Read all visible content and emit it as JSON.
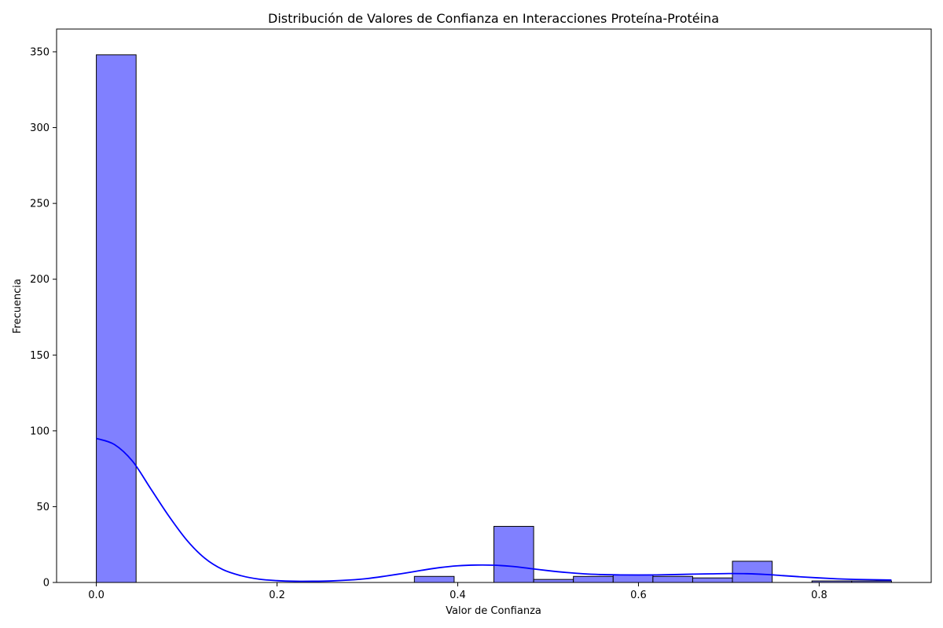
{
  "chart_data": {
    "type": "bar",
    "title": "Distribución de Valores de Confianza en Interacciones Proteína-Protéina",
    "xlabel": "Valor de Confianza",
    "ylabel": "Frecuencia",
    "xlim": [
      -0.044,
      0.924
    ],
    "ylim": [
      0,
      365
    ],
    "xticks": [
      0.0,
      0.2,
      0.4,
      0.6,
      0.8
    ],
    "xtick_labels": [
      "0.0",
      "0.2",
      "0.4",
      "0.6",
      "0.8"
    ],
    "yticks": [
      0,
      50,
      100,
      150,
      200,
      250,
      300,
      350
    ],
    "ytick_labels": [
      "0",
      "50",
      "100",
      "150",
      "200",
      "250",
      "300",
      "350"
    ],
    "bin_width": 0.044,
    "bins": [
      {
        "x0": 0.0,
        "value": 348
      },
      {
        "x0": 0.352,
        "value": 4
      },
      {
        "x0": 0.44,
        "value": 37
      },
      {
        "x0": 0.484,
        "value": 2
      },
      {
        "x0": 0.528,
        "value": 4
      },
      {
        "x0": 0.572,
        "value": 5
      },
      {
        "x0": 0.616,
        "value": 4
      },
      {
        "x0": 0.66,
        "value": 3
      },
      {
        "x0": 0.704,
        "value": 14
      },
      {
        "x0": 0.792,
        "value": 1
      },
      {
        "x0": 0.836,
        "value": 1
      }
    ],
    "kde": {
      "x": [
        0.0,
        0.02,
        0.04,
        0.06,
        0.08,
        0.1,
        0.12,
        0.14,
        0.16,
        0.18,
        0.2,
        0.22,
        0.24,
        0.26,
        0.28,
        0.3,
        0.32,
        0.34,
        0.36,
        0.38,
        0.4,
        0.42,
        0.44,
        0.46,
        0.48,
        0.5,
        0.52,
        0.54,
        0.56,
        0.58,
        0.6,
        0.62,
        0.64,
        0.66,
        0.68,
        0.7,
        0.72,
        0.74,
        0.76,
        0.78,
        0.8,
        0.82,
        0.84,
        0.86,
        0.88
      ],
      "y": [
        95,
        91,
        80,
        62,
        44,
        28,
        16,
        8.5,
        4.5,
        2.2,
        1.2,
        0.8,
        0.8,
        1.0,
        1.6,
        2.6,
        4.2,
        6.0,
        8.0,
        9.8,
        11.0,
        11.5,
        11.4,
        10.6,
        9.2,
        7.8,
        6.6,
        5.7,
        5.2,
        5.0,
        4.9,
        5.0,
        5.2,
        5.5,
        5.7,
        5.9,
        5.8,
        5.3,
        4.5,
        3.7,
        3.0,
        2.4,
        2.0,
        1.8,
        1.6
      ]
    },
    "colors": {
      "bar_fill": "#8080ff",
      "bar_stroke": "#000000",
      "kde_line": "#0000ff"
    },
    "grid": false,
    "legend": "none"
  }
}
